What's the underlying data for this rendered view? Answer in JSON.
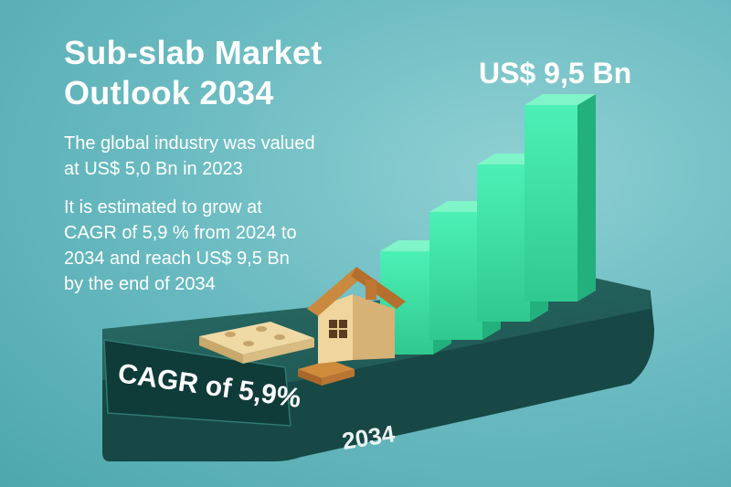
{
  "title": "Sub-slab Market\nOutlook 2034",
  "description": {
    "line1": "The global industry was valued\nat US$ 5,0 Bn in 2023",
    "line2": "It is estimated to grow at\nCAGR of 5,9 % from 2024 to\n2034 and reach US$ 9,5 Bn\nby the end of 2034"
  },
  "chart_data": {
    "type": "bar",
    "values": [
      5.0,
      6.2,
      7.6,
      9.5
    ],
    "highlight_label": "US$ 9,5 Bn",
    "cagr_label": "CAGR of 5,9%",
    "year_label": "2034"
  },
  "colors": {
    "background": "#6cbcc2",
    "bar": "#3fe0a6",
    "platform": "#1f5d58",
    "text": "#ffffff"
  }
}
